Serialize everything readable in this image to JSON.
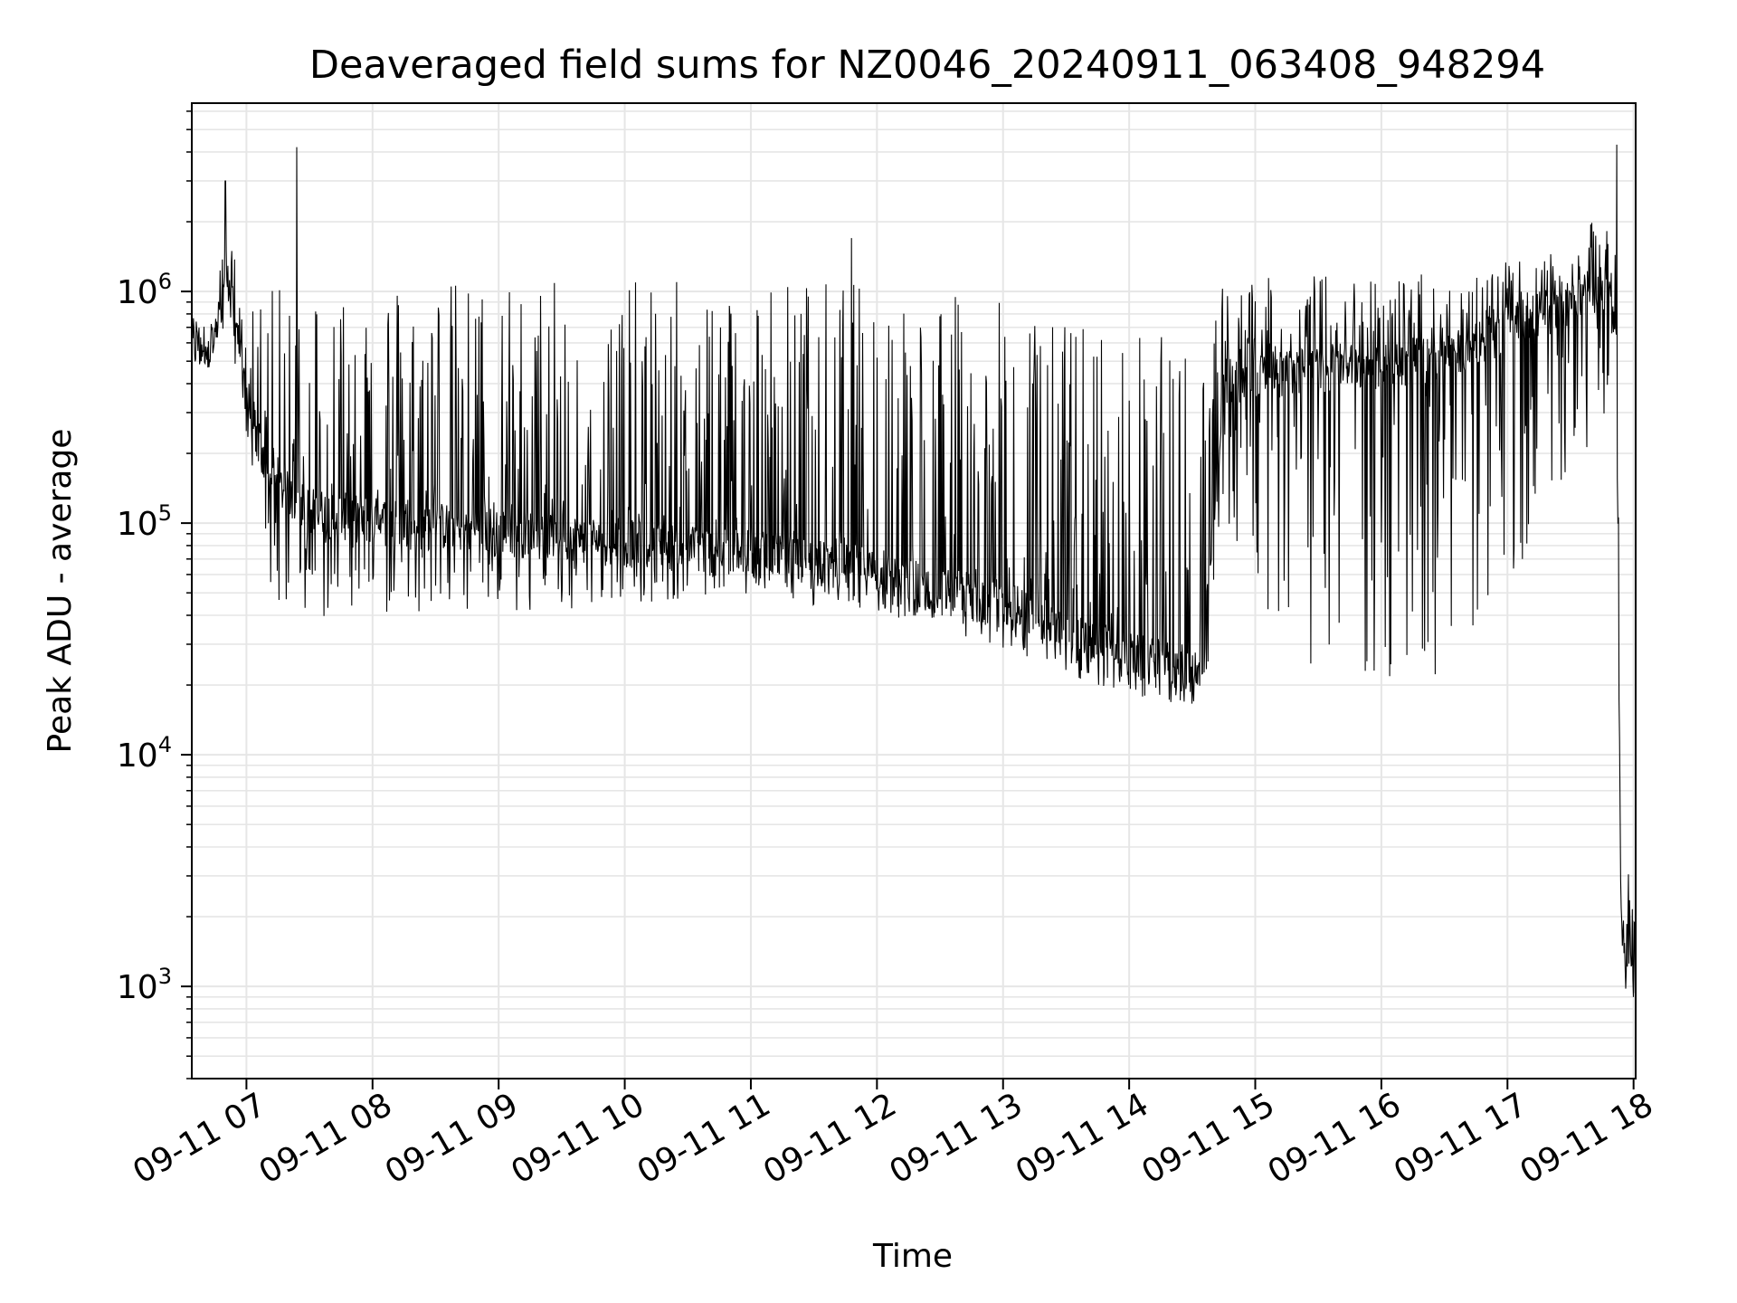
{
  "chart_data": {
    "type": "line",
    "title": "Deaveraged field sums for NZ0046_20240911_063408_948294",
    "xlabel": "Time",
    "ylabel": "Peak ADU - average",
    "y_scale": "log",
    "ylim": [
      400,
      6500000
    ],
    "xlim": [
      "2024-09-11 06:34",
      "2024-09-11 18:01"
    ],
    "grid": true,
    "line_color": "#000000",
    "grid_color": "#e6e6e6",
    "x_ticks": [
      {
        "value": "2024-09-11 07:00",
        "label": "09-11 07"
      },
      {
        "value": "2024-09-11 08:00",
        "label": "09-11 08"
      },
      {
        "value": "2024-09-11 09:00",
        "label": "09-11 09"
      },
      {
        "value": "2024-09-11 10:00",
        "label": "09-11 10"
      },
      {
        "value": "2024-09-11 11:00",
        "label": "09-11 11"
      },
      {
        "value": "2024-09-11 12:00",
        "label": "09-11 12"
      },
      {
        "value": "2024-09-11 13:00",
        "label": "09-11 13"
      },
      {
        "value": "2024-09-11 14:00",
        "label": "09-11 14"
      },
      {
        "value": "2024-09-11 15:00",
        "label": "09-11 15"
      },
      {
        "value": "2024-09-11 16:00",
        "label": "09-11 16"
      },
      {
        "value": "2024-09-11 17:00",
        "label": "09-11 17"
      },
      {
        "value": "2024-09-11 18:00",
        "label": "09-11 18"
      }
    ],
    "y_ticks": [
      {
        "value": 1000,
        "base": "10",
        "exp": "3"
      },
      {
        "value": 10000,
        "base": "10",
        "exp": "4"
      },
      {
        "value": 100000,
        "base": "10",
        "exp": "5"
      },
      {
        "value": 1000000,
        "base": "10",
        "exp": "6"
      }
    ],
    "series": [
      {
        "envelope": [
          {
            "t": "2024-09-11 06:34",
            "low": 400000,
            "base": 550000,
            "high": 800000
          },
          {
            "t": "2024-09-11 06:45",
            "low": 500000,
            "base": 600000,
            "high": 800000
          },
          {
            "t": "2024-09-11 06:52",
            "low": 700000,
            "base": 1100000,
            "high": 3000000
          },
          {
            "t": "2024-09-11 06:56",
            "low": 400000,
            "base": 600000,
            "high": 900000
          },
          {
            "t": "2024-09-11 07:00",
            "low": 200000,
            "base": 350000,
            "high": 900000
          },
          {
            "t": "2024-09-11 07:10",
            "low": 50000,
            "base": 150000,
            "high": 1000000
          },
          {
            "t": "2024-09-11 07:30",
            "low": 38000,
            "base": 110000,
            "high": 1200000
          },
          {
            "t": "2024-09-11 08:00",
            "low": 40000,
            "base": 100000,
            "high": 1200000
          },
          {
            "t": "2024-09-11 09:00",
            "low": 40000,
            "base": 90000,
            "high": 1100000
          },
          {
            "t": "2024-09-11 10:00",
            "low": 45000,
            "base": 80000,
            "high": 1100000
          },
          {
            "t": "2024-09-11 11:00",
            "low": 48000,
            "base": 72000,
            "high": 1200000
          },
          {
            "t": "2024-09-11 12:00",
            "low": 40000,
            "base": 60000,
            "high": 1100000
          },
          {
            "t": "2024-09-11 12:30",
            "low": 33000,
            "base": 50000,
            "high": 1000000
          },
          {
            "t": "2024-09-11 13:00",
            "low": 28000,
            "base": 45000,
            "high": 900000
          },
          {
            "t": "2024-09-11 13:30",
            "low": 22000,
            "base": 32000,
            "high": 800000
          },
          {
            "t": "2024-09-11 14:00",
            "low": 18000,
            "base": 26000,
            "high": 700000
          },
          {
            "t": "2024-09-11 14:35",
            "low": 15000,
            "base": 22000,
            "high": 600000
          },
          {
            "t": "2024-09-11 14:45",
            "low": 80000,
            "base": 400000,
            "high": 1100000
          },
          {
            "t": "2024-09-11 15:30",
            "low": 20000,
            "base": 450000,
            "high": 1200000
          },
          {
            "t": "2024-09-11 16:30",
            "low": 20000,
            "base": 500000,
            "high": 1200000
          },
          {
            "t": "2024-09-11 17:30",
            "low": 150000,
            "base": 900000,
            "high": 1500000
          },
          {
            "t": "2024-09-11 17:48",
            "low": 300000,
            "base": 1000000,
            "high": 2500000
          },
          {
            "t": "2024-09-11 17:52",
            "low": 100000,
            "base": 500000,
            "high": 1300000
          },
          {
            "t": "2024-09-11 17:54",
            "low": 1000,
            "base": 1500,
            "high": 4500
          },
          {
            "t": "2024-09-11 18:00",
            "low": 800,
            "base": 1500,
            "high": 2500
          }
        ],
        "spikes": [
          {
            "t": "2024-09-11 06:50",
            "value": 3000000
          },
          {
            "t": "2024-09-11 07:24",
            "value": 4200000
          },
          {
            "t": "2024-09-11 11:48",
            "value": 1700000
          },
          {
            "t": "2024-09-11 17:52",
            "value": 4300000
          },
          {
            "t": "2024-09-11 18:00",
            "value": 900
          }
        ]
      }
    ]
  }
}
